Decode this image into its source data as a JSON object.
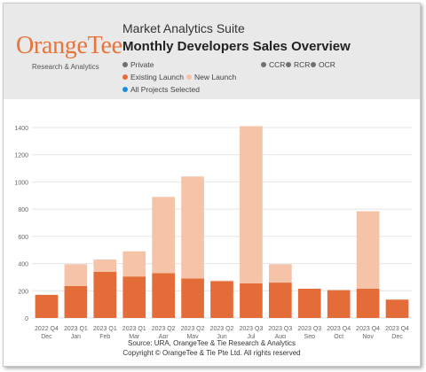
{
  "header": {
    "app_title": "Market Analytics Suite",
    "report_title": "Monthly Developers Sales Overview",
    "logo": {
      "brand": "OrangeTee",
      "tagline": "Research & Analytics"
    }
  },
  "filters": {
    "private": "Private",
    "regions": [
      "CCR",
      "RCR",
      "OCR"
    ],
    "existing_launch": "Existing Launch",
    "new_launch": "New Launch",
    "projects": "All Projects Selected"
  },
  "colors": {
    "existing_launch": "#e46c38",
    "new_launch": "#f5c3a8",
    "selector_dot": "#707070",
    "projects_dot": "#1a8fe0",
    "header_bg": "#e9e9e9"
  },
  "footer": {
    "source": "Source: URA, OrangeTee & Tie Research & Analytics",
    "copyright": "Copyright © OrangeTee & Tie Pte Ltd. All rights reserved"
  },
  "chart_data": {
    "type": "bar",
    "stacked": true,
    "categories": [
      [
        "2022 Q4",
        "Dec"
      ],
      [
        "2023 Q1",
        "Jan"
      ],
      [
        "2023 Q1",
        "Feb"
      ],
      [
        "2023 Q1",
        "Mar"
      ],
      [
        "2023 Q2",
        "Apr"
      ],
      [
        "2023 Q2",
        "May"
      ],
      [
        "2023 Q2",
        "Jun"
      ],
      [
        "2023 Q3",
        "Jul"
      ],
      [
        "2023 Q3",
        "Aug"
      ],
      [
        "2023 Q3",
        "Sep"
      ],
      [
        "2023 Q4",
        "Oct"
      ],
      [
        "2023 Q4",
        "Nov"
      ],
      [
        "2023 Q4",
        "Dec"
      ]
    ],
    "series": [
      {
        "name": "Existing Launch",
        "values": [
          170,
          235,
          340,
          305,
          330,
          290,
          270,
          255,
          260,
          215,
          205,
          215,
          135
        ]
      },
      {
        "name": "New Launch",
        "values": [
          0,
          160,
          90,
          185,
          560,
          750,
          5,
          1155,
          135,
          0,
          0,
          570,
          0
        ]
      }
    ],
    "ylim": [
      0,
      1400
    ],
    "yticks": [
      0,
      200,
      400,
      600,
      800,
      1000,
      1200,
      1400
    ],
    "grid": true
  }
}
